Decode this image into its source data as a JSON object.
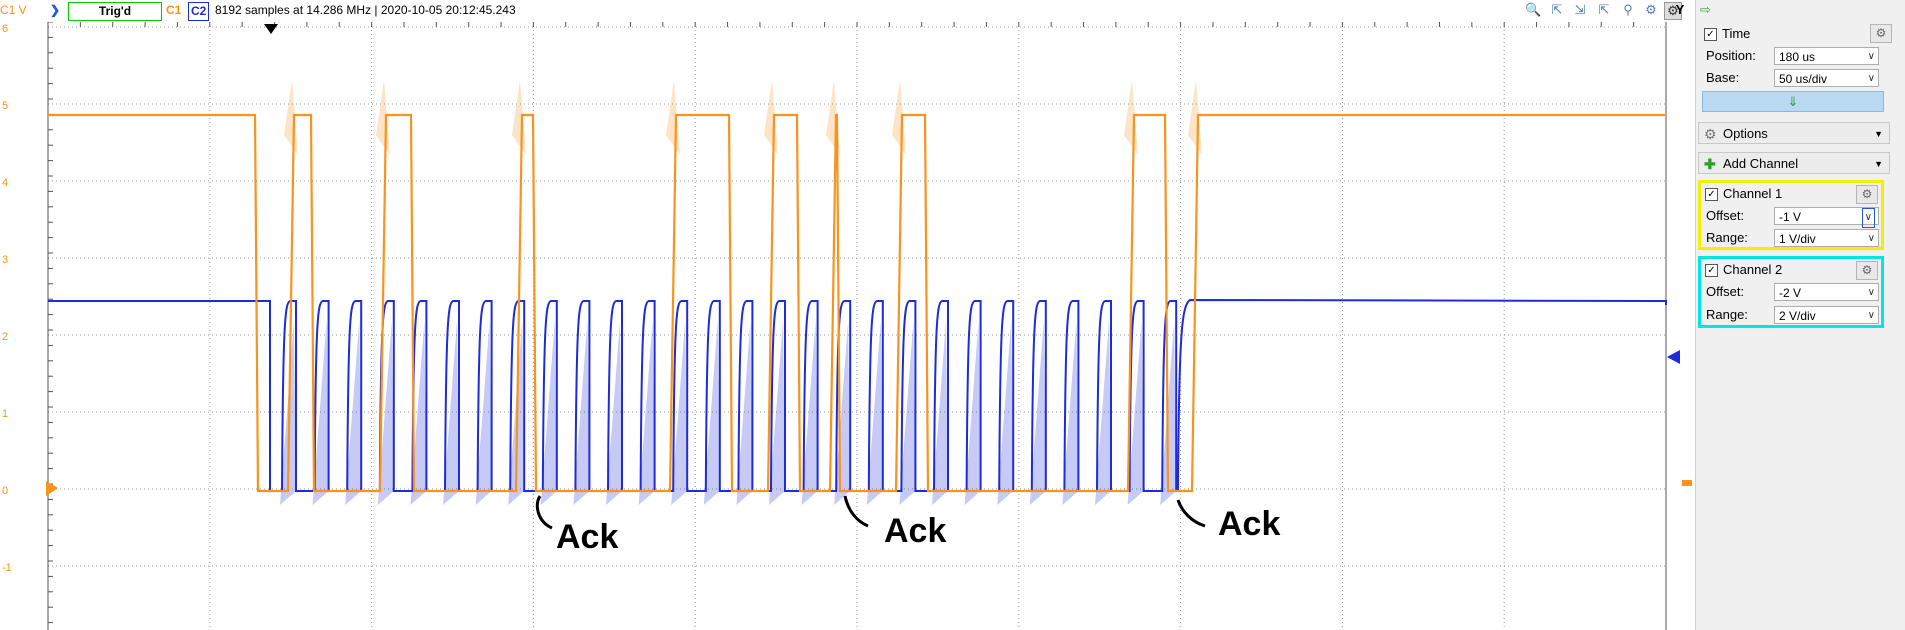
{
  "toolbar": {
    "channel_unit": "C1 V",
    "trigger_status": "Trig'd",
    "c1_label": "C1",
    "c2_label": "C2",
    "acquisition_info": "8192 samples at 14.286 MHz | 2020-10-05 20:12:45.243",
    "y_button": "Y"
  },
  "y_axis": {
    "ticks": [
      "6",
      "5",
      "4",
      "3",
      "2",
      "1",
      "0",
      "-1"
    ]
  },
  "annotations": [
    "Ack",
    "Ack",
    "Ack"
  ],
  "panel": {
    "time": {
      "title": "Time",
      "position_label": "Position:",
      "position_value": "180 us",
      "base_label": "Base:",
      "base_value": "50 us/div"
    },
    "options_label": "Options",
    "add_channel_label": "Add Channel",
    "channel1": {
      "title": "Channel 1",
      "offset_label": "Offset:",
      "offset_value": "-1 V",
      "range_label": "Range:",
      "range_value": "1 V/div",
      "color": "#f0f000"
    },
    "channel2": {
      "title": "Channel 2",
      "offset_label": "Offset:",
      "offset_value": "-2 V",
      "range_label": "Range:",
      "range_value": "2 V/div",
      "color": "#00e5e5"
    }
  },
  "colors": {
    "c1": "#f7931e",
    "c2": "#1d2bd9",
    "grid": "#9a9a9a"
  }
}
